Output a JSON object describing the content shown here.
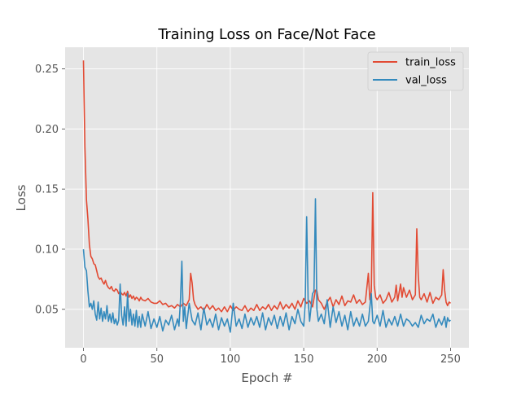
{
  "chart_data": {
    "type": "line",
    "title": "Training Loss on Face/Not Face",
    "xlabel": "Epoch #",
    "ylabel": "Loss",
    "xlim": [
      -12.5,
      262.5
    ],
    "ylim": [
      0.018,
      0.268
    ],
    "xticks": [
      0,
      50,
      100,
      150,
      200,
      250
    ],
    "yticks": [
      0.05,
      0.1,
      0.15,
      0.2,
      0.25
    ],
    "ytick_labels": [
      "0.05",
      "0.10",
      "0.15",
      "0.20",
      "0.25"
    ],
    "grid": true,
    "legend_position": "top-right",
    "series": [
      {
        "name": "train_loss",
        "color": "#E24A33",
        "points": [
          [
            0,
            0.257
          ],
          [
            1,
            0.185
          ],
          [
            2,
            0.141
          ],
          [
            3,
            0.125
          ],
          [
            4,
            0.104
          ],
          [
            5,
            0.094
          ],
          [
            6,
            0.092
          ],
          [
            7,
            0.088
          ],
          [
            8,
            0.087
          ],
          [
            9,
            0.082
          ],
          [
            10,
            0.077
          ],
          [
            11,
            0.075
          ],
          [
            12,
            0.076
          ],
          [
            13,
            0.073
          ],
          [
            14,
            0.071
          ],
          [
            15,
            0.074
          ],
          [
            16,
            0.07
          ],
          [
            17,
            0.068
          ],
          [
            18,
            0.067
          ],
          [
            19,
            0.069
          ],
          [
            20,
            0.066
          ],
          [
            21,
            0.065
          ],
          [
            22,
            0.067
          ],
          [
            23,
            0.066
          ],
          [
            24,
            0.063
          ],
          [
            25,
            0.065
          ],
          [
            26,
            0.063
          ],
          [
            27,
            0.062
          ],
          [
            28,
            0.064
          ],
          [
            29,
            0.061
          ],
          [
            30,
            0.065
          ],
          [
            31,
            0.06
          ],
          [
            32,
            0.062
          ],
          [
            33,
            0.059
          ],
          [
            34,
            0.061
          ],
          [
            35,
            0.058
          ],
          [
            36,
            0.06
          ],
          [
            37,
            0.059
          ],
          [
            38,
            0.057
          ],
          [
            39,
            0.06
          ],
          [
            40,
            0.058
          ],
          [
            42,
            0.057
          ],
          [
            44,
            0.059
          ],
          [
            46,
            0.056
          ],
          [
            48,
            0.055
          ],
          [
            50,
            0.055
          ],
          [
            52,
            0.057
          ],
          [
            54,
            0.054
          ],
          [
            56,
            0.055
          ],
          [
            58,
            0.052
          ],
          [
            60,
            0.053
          ],
          [
            62,
            0.051
          ],
          [
            64,
            0.054
          ],
          [
            66,
            0.052
          ],
          [
            68,
            0.055
          ],
          [
            70,
            0.053
          ],
          [
            72,
            0.058
          ],
          [
            73,
            0.08
          ],
          [
            74,
            0.072
          ],
          [
            75,
            0.058
          ],
          [
            76,
            0.054
          ],
          [
            78,
            0.05
          ],
          [
            80,
            0.052
          ],
          [
            82,
            0.049
          ],
          [
            84,
            0.054
          ],
          [
            86,
            0.05
          ],
          [
            88,
            0.053
          ],
          [
            90,
            0.049
          ],
          [
            92,
            0.051
          ],
          [
            94,
            0.048
          ],
          [
            96,
            0.052
          ],
          [
            98,
            0.048
          ],
          [
            100,
            0.053
          ],
          [
            102,
            0.049
          ],
          [
            104,
            0.052
          ],
          [
            106,
            0.05
          ],
          [
            108,
            0.049
          ],
          [
            110,
            0.053
          ],
          [
            112,
            0.048
          ],
          [
            114,
            0.051
          ],
          [
            116,
            0.049
          ],
          [
            118,
            0.054
          ],
          [
            120,
            0.049
          ],
          [
            122,
            0.052
          ],
          [
            124,
            0.05
          ],
          [
            126,
            0.054
          ],
          [
            128,
            0.049
          ],
          [
            130,
            0.053
          ],
          [
            132,
            0.05
          ],
          [
            134,
            0.056
          ],
          [
            136,
            0.05
          ],
          [
            138,
            0.054
          ],
          [
            140,
            0.051
          ],
          [
            142,
            0.055
          ],
          [
            144,
            0.05
          ],
          [
            146,
            0.057
          ],
          [
            148,
            0.052
          ],
          [
            150,
            0.059
          ],
          [
            152,
            0.055
          ],
          [
            154,
            0.057
          ],
          [
            156,
            0.052
          ],
          [
            158,
            0.066
          ],
          [
            159,
            0.065
          ],
          [
            160,
            0.058
          ],
          [
            162,
            0.055
          ],
          [
            164,
            0.05
          ],
          [
            166,
            0.056
          ],
          [
            168,
            0.06
          ],
          [
            170,
            0.052
          ],
          [
            172,
            0.058
          ],
          [
            174,
            0.054
          ],
          [
            176,
            0.061
          ],
          [
            178,
            0.053
          ],
          [
            180,
            0.057
          ],
          [
            182,
            0.056
          ],
          [
            184,
            0.062
          ],
          [
            186,
            0.055
          ],
          [
            188,
            0.058
          ],
          [
            190,
            0.054
          ],
          [
            192,
            0.056
          ],
          [
            194,
            0.08
          ],
          [
            195,
            0.058
          ],
          [
            196,
            0.065
          ],
          [
            197,
            0.147
          ],
          [
            198,
            0.07
          ],
          [
            199,
            0.06
          ],
          [
            200,
            0.058
          ],
          [
            202,
            0.062
          ],
          [
            204,
            0.055
          ],
          [
            206,
            0.058
          ],
          [
            208,
            0.064
          ],
          [
            210,
            0.056
          ],
          [
            212,
            0.06
          ],
          [
            213,
            0.07
          ],
          [
            214,
            0.057
          ],
          [
            216,
            0.071
          ],
          [
            217,
            0.06
          ],
          [
            218,
            0.068
          ],
          [
            220,
            0.06
          ],
          [
            222,
            0.066
          ],
          [
            224,
            0.058
          ],
          [
            226,
            0.062
          ],
          [
            227,
            0.117
          ],
          [
            228,
            0.078
          ],
          [
            229,
            0.06
          ],
          [
            230,
            0.058
          ],
          [
            232,
            0.063
          ],
          [
            234,
            0.056
          ],
          [
            236,
            0.064
          ],
          [
            238,
            0.055
          ],
          [
            240,
            0.06
          ],
          [
            242,
            0.058
          ],
          [
            244,
            0.062
          ],
          [
            245,
            0.083
          ],
          [
            246,
            0.066
          ],
          [
            247,
            0.056
          ],
          [
            248,
            0.053
          ],
          [
            249,
            0.056
          ],
          [
            250,
            0.055
          ]
        ]
      },
      {
        "name": "val_loss",
        "color": "#348ABD",
        "points": [
          [
            0,
            0.1
          ],
          [
            1,
            0.085
          ],
          [
            2,
            0.082
          ],
          [
            3,
            0.065
          ],
          [
            4,
            0.052
          ],
          [
            5,
            0.055
          ],
          [
            6,
            0.05
          ],
          [
            7,
            0.057
          ],
          [
            8,
            0.046
          ],
          [
            9,
            0.041
          ],
          [
            10,
            0.056
          ],
          [
            11,
            0.042
          ],
          [
            12,
            0.051
          ],
          [
            13,
            0.04
          ],
          [
            14,
            0.048
          ],
          [
            15,
            0.042
          ],
          [
            16,
            0.053
          ],
          [
            17,
            0.04
          ],
          [
            18,
            0.046
          ],
          [
            19,
            0.039
          ],
          [
            20,
            0.047
          ],
          [
            21,
            0.038
          ],
          [
            22,
            0.042
          ],
          [
            23,
            0.037
          ],
          [
            24,
            0.041
          ],
          [
            25,
            0.071
          ],
          [
            26,
            0.045
          ],
          [
            27,
            0.037
          ],
          [
            28,
            0.052
          ],
          [
            29,
            0.036
          ],
          [
            30,
            0.063
          ],
          [
            31,
            0.04
          ],
          [
            32,
            0.05
          ],
          [
            33,
            0.037
          ],
          [
            34,
            0.046
          ],
          [
            35,
            0.036
          ],
          [
            36,
            0.049
          ],
          [
            37,
            0.035
          ],
          [
            38,
            0.044
          ],
          [
            39,
            0.035
          ],
          [
            40,
            0.046
          ],
          [
            42,
            0.036
          ],
          [
            44,
            0.048
          ],
          [
            46,
            0.034
          ],
          [
            48,
            0.042
          ],
          [
            50,
            0.035
          ],
          [
            52,
            0.044
          ],
          [
            54,
            0.032
          ],
          [
            56,
            0.041
          ],
          [
            58,
            0.037
          ],
          [
            60,
            0.045
          ],
          [
            62,
            0.033
          ],
          [
            64,
            0.042
          ],
          [
            65,
            0.036
          ],
          [
            66,
            0.056
          ],
          [
            67,
            0.09
          ],
          [
            68,
            0.04
          ],
          [
            69,
            0.052
          ],
          [
            70,
            0.034
          ],
          [
            72,
            0.055
          ],
          [
            74,
            0.041
          ],
          [
            76,
            0.037
          ],
          [
            78,
            0.047
          ],
          [
            80,
            0.033
          ],
          [
            82,
            0.051
          ],
          [
            84,
            0.037
          ],
          [
            86,
            0.042
          ],
          [
            88,
            0.035
          ],
          [
            90,
            0.046
          ],
          [
            92,
            0.033
          ],
          [
            94,
            0.043
          ],
          [
            96,
            0.036
          ],
          [
            98,
            0.042
          ],
          [
            100,
            0.031
          ],
          [
            102,
            0.055
          ],
          [
            104,
            0.036
          ],
          [
            106,
            0.042
          ],
          [
            108,
            0.034
          ],
          [
            110,
            0.046
          ],
          [
            112,
            0.035
          ],
          [
            114,
            0.043
          ],
          [
            116,
            0.037
          ],
          [
            118,
            0.044
          ],
          [
            120,
            0.035
          ],
          [
            122,
            0.047
          ],
          [
            124,
            0.033
          ],
          [
            126,
            0.043
          ],
          [
            128,
            0.037
          ],
          [
            130,
            0.045
          ],
          [
            132,
            0.034
          ],
          [
            134,
            0.044
          ],
          [
            136,
            0.036
          ],
          [
            138,
            0.047
          ],
          [
            140,
            0.033
          ],
          [
            142,
            0.044
          ],
          [
            144,
            0.038
          ],
          [
            146,
            0.05
          ],
          [
            148,
            0.04
          ],
          [
            150,
            0.036
          ],
          [
            151,
            0.055
          ],
          [
            152,
            0.127
          ],
          [
            153,
            0.058
          ],
          [
            154,
            0.04
          ],
          [
            156,
            0.063
          ],
          [
            157,
            0.065
          ],
          [
            158,
            0.142
          ],
          [
            159,
            0.05
          ],
          [
            160,
            0.04
          ],
          [
            162,
            0.046
          ],
          [
            164,
            0.038
          ],
          [
            166,
            0.058
          ],
          [
            168,
            0.035
          ],
          [
            170,
            0.052
          ],
          [
            172,
            0.039
          ],
          [
            174,
            0.048
          ],
          [
            176,
            0.036
          ],
          [
            178,
            0.045
          ],
          [
            180,
            0.033
          ],
          [
            182,
            0.048
          ],
          [
            184,
            0.036
          ],
          [
            186,
            0.043
          ],
          [
            188,
            0.036
          ],
          [
            190,
            0.046
          ],
          [
            192,
            0.036
          ],
          [
            194,
            0.04
          ],
          [
            196,
            0.063
          ],
          [
            197,
            0.04
          ],
          [
            198,
            0.038
          ],
          [
            200,
            0.045
          ],
          [
            202,
            0.036
          ],
          [
            204,
            0.049
          ],
          [
            206,
            0.035
          ],
          [
            208,
            0.042
          ],
          [
            210,
            0.037
          ],
          [
            212,
            0.044
          ],
          [
            214,
            0.036
          ],
          [
            216,
            0.046
          ],
          [
            218,
            0.036
          ],
          [
            220,
            0.042
          ],
          [
            222,
            0.04
          ],
          [
            224,
            0.036
          ],
          [
            226,
            0.039
          ],
          [
            228,
            0.035
          ],
          [
            230,
            0.045
          ],
          [
            232,
            0.038
          ],
          [
            234,
            0.042
          ],
          [
            236,
            0.04
          ],
          [
            238,
            0.046
          ],
          [
            240,
            0.035
          ],
          [
            242,
            0.042
          ],
          [
            244,
            0.037
          ],
          [
            246,
            0.044
          ],
          [
            247,
            0.035
          ],
          [
            248,
            0.043
          ],
          [
            249,
            0.04
          ],
          [
            250,
            0.041
          ]
        ]
      }
    ]
  }
}
